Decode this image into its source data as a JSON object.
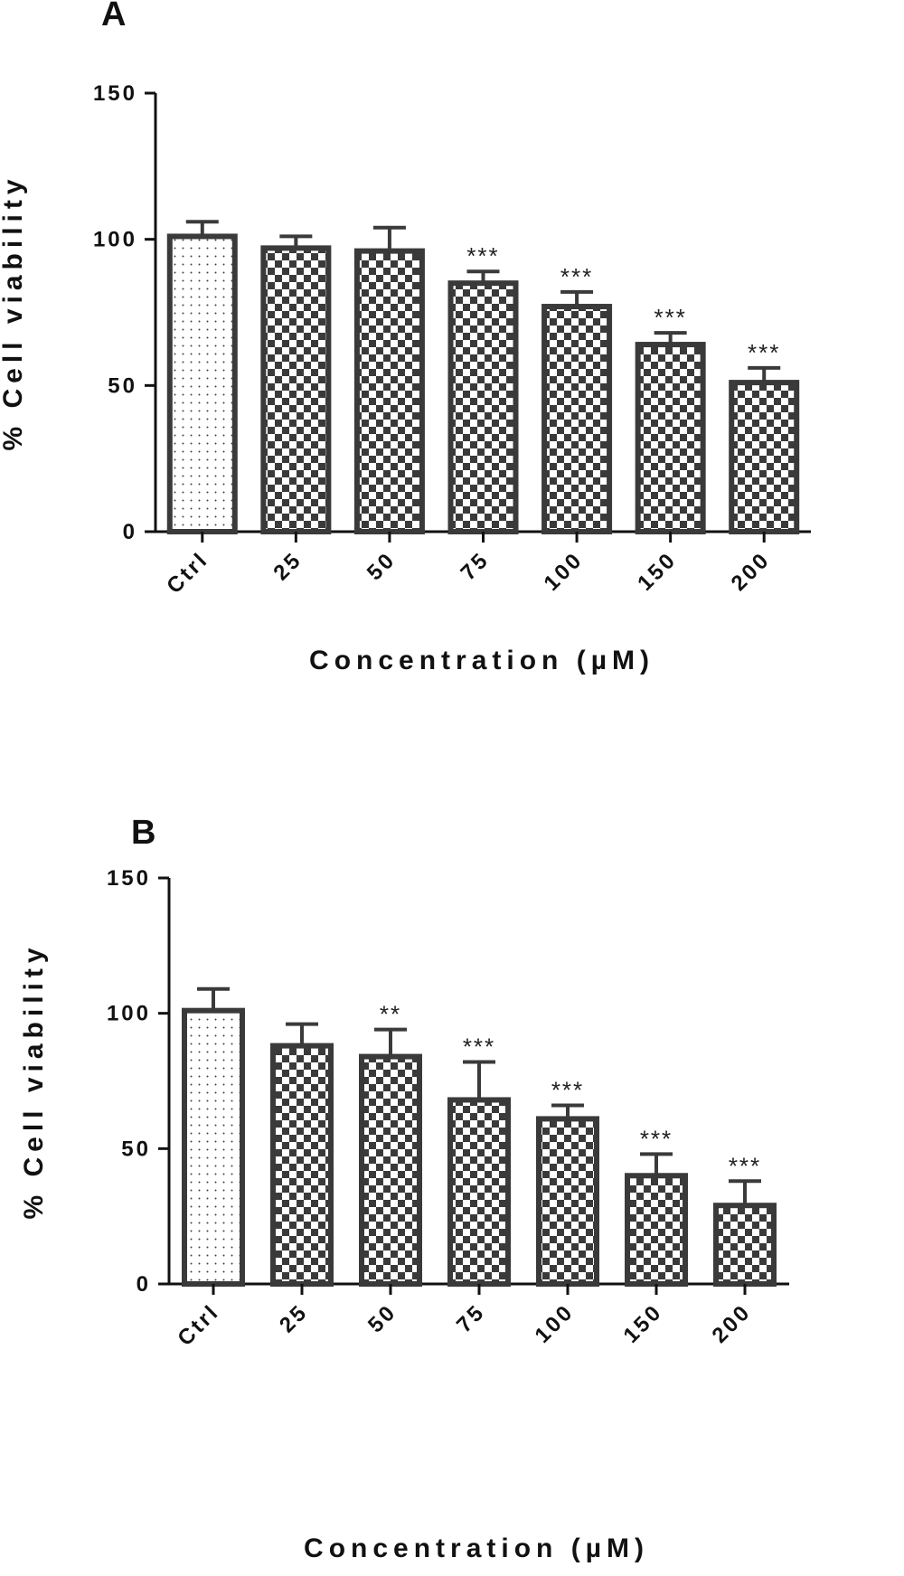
{
  "colors": {
    "ink": "#3a3a3a",
    "axis": "#111111",
    "ctrl_fill": "#ffffff"
  },
  "chart_data": [
    {
      "type": "bar",
      "panel_label": "A",
      "categories": [
        "Ctrl",
        "25",
        "50",
        "75",
        "100",
        "150",
        "200"
      ],
      "values": [
        101,
        97,
        96,
        85,
        77,
        64,
        51
      ],
      "errors": [
        5,
        4,
        8,
        4,
        5,
        4,
        5
      ],
      "significance": [
        "",
        "",
        "",
        "***",
        "***",
        "***",
        "***"
      ],
      "fill_patterns": [
        "dots",
        "checker",
        "checker",
        "checker",
        "checker",
        "checker",
        "checker"
      ],
      "xlabel": "Concentration (µM)",
      "ylabel": "% Cell viability",
      "ylim": [
        0,
        150
      ],
      "yticks": [
        0,
        50,
        100,
        150
      ],
      "grid": false
    },
    {
      "type": "bar",
      "panel_label": "B",
      "categories": [
        "Ctrl",
        "25",
        "50",
        "75",
        "100",
        "150",
        "200"
      ],
      "values": [
        101,
        88,
        84,
        68,
        61,
        40,
        29
      ],
      "errors": [
        8,
        8,
        10,
        14,
        5,
        8,
        9
      ],
      "significance": [
        "",
        "",
        "**",
        "***",
        "***",
        "***",
        "***"
      ],
      "fill_patterns": [
        "dots",
        "checker",
        "checker",
        "checker",
        "checker",
        "checker",
        "checker"
      ],
      "xlabel": "Concentration (µM)",
      "ylabel": "% Cell viability",
      "ylim": [
        0,
        150
      ],
      "yticks": [
        0,
        50,
        100,
        150
      ],
      "grid": false
    }
  ]
}
